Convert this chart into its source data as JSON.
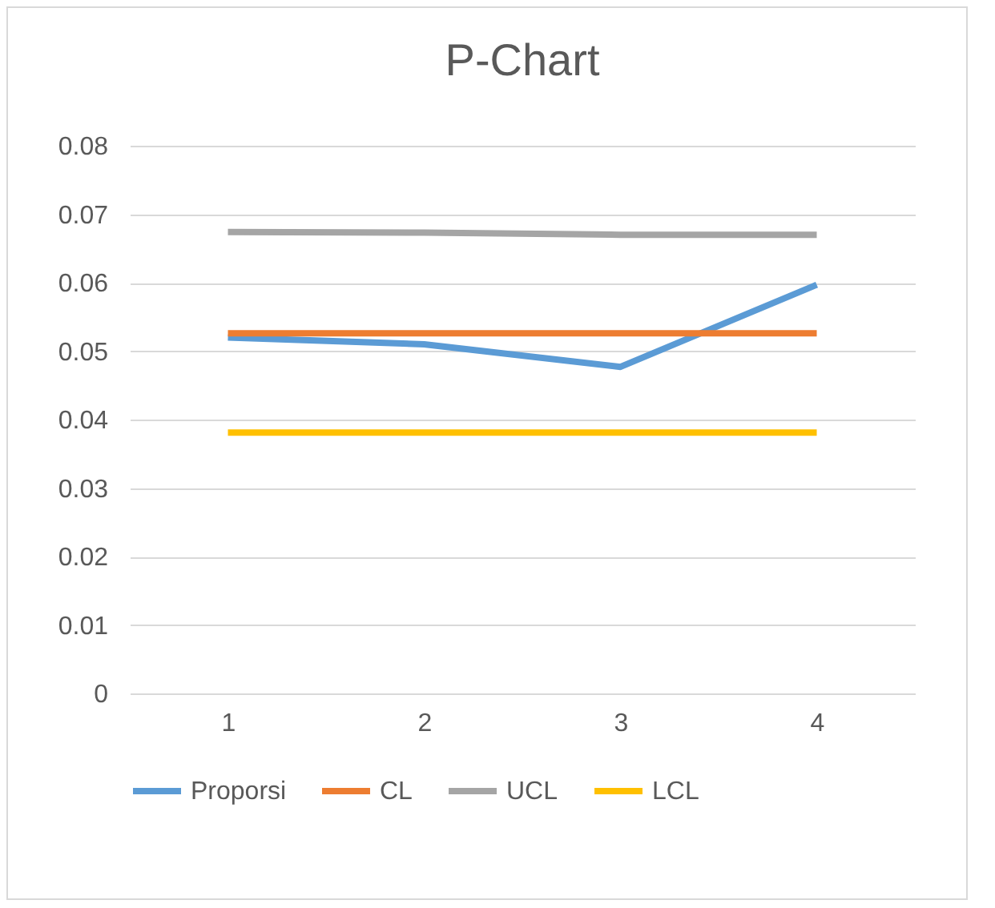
{
  "chart_data": {
    "type": "line",
    "title": "P-Chart",
    "categories": [
      "1",
      "2",
      "3",
      "4"
    ],
    "series": [
      {
        "name": "Proporsi",
        "color": "#5b9bd5",
        "values": [
          0.052,
          0.051,
          0.0477,
          0.0597
        ]
      },
      {
        "name": "CL",
        "color": "#ed7d31",
        "values": [
          0.0526,
          0.0526,
          0.0526,
          0.0526
        ]
      },
      {
        "name": "UCL",
        "color": "#a5a5a5",
        "values": [
          0.0674,
          0.0673,
          0.067,
          0.067
        ]
      },
      {
        "name": "LCL",
        "color": "#ffc000",
        "values": [
          0.0381,
          0.0381,
          0.0381,
          0.0381
        ]
      }
    ],
    "ylim": [
      0,
      0.08
    ],
    "yticks": [
      0,
      0.01,
      0.02,
      0.03,
      0.04,
      0.05,
      0.06,
      0.07,
      0.08
    ],
    "grid": "y",
    "legend": "bottom"
  }
}
